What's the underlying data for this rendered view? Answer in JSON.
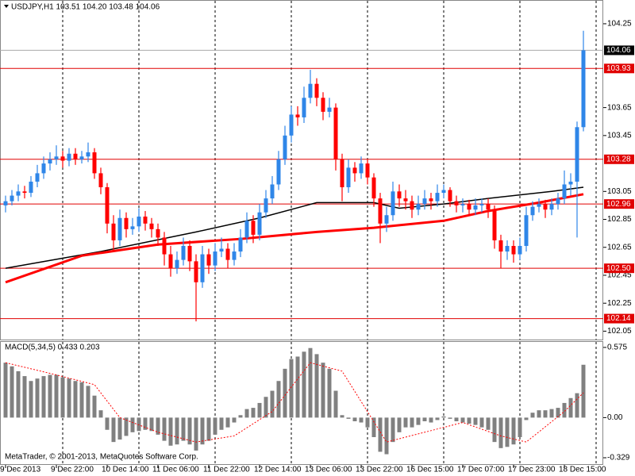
{
  "chart_data": [
    {
      "type": "candlestick",
      "title": "USDJPY,H1  103.51 104.20 103.48 104.06",
      "up_color": "#2f86e8",
      "down_color": "#ff0000",
      "level_color": "#e00000",
      "categories": [
        "9 Dec 2013",
        null,
        null,
        null,
        null,
        null,
        null,
        null,
        "9 Dec 22:00",
        null,
        null,
        null,
        null,
        null,
        null,
        null,
        "10 Dec 14:00",
        null,
        null,
        null,
        null,
        null,
        null,
        null,
        "11 Dec 06:00",
        null,
        null,
        null,
        null,
        null,
        null,
        null,
        "11 Dec 22:00",
        null,
        null,
        null,
        null,
        null,
        null,
        null,
        "12 Dec 14:00",
        null,
        null,
        null,
        null,
        null,
        null,
        null,
        "13 Dec 06:00",
        null,
        null,
        null,
        null,
        null,
        null,
        null,
        "13 Dec 22:00",
        null,
        null,
        null,
        null,
        null,
        null,
        null,
        "16 Dec 15:00",
        null,
        null,
        null,
        null,
        null,
        null,
        null,
        "17 Dec 07:00",
        null,
        null,
        null,
        null,
        null,
        null,
        null,
        "17 Dec 23:00",
        null,
        null,
        null,
        null,
        null,
        null,
        null,
        "18 Dec 15:00",
        null,
        null,
        null
      ],
      "candles": [
        [
          102.95,
          103.02,
          102.9,
          102.98
        ],
        [
          102.98,
          103.06,
          102.95,
          103.02
        ],
        [
          103.02,
          103.1,
          102.98,
          103.05
        ],
        [
          103.05,
          103.09,
          103.0,
          103.04
        ],
        [
          103.04,
          103.16,
          103.01,
          103.12
        ],
        [
          103.12,
          103.24,
          103.08,
          103.18
        ],
        [
          103.18,
          103.3,
          103.14,
          103.25
        ],
        [
          103.25,
          103.33,
          103.2,
          103.28
        ],
        [
          103.28,
          103.38,
          103.24,
          103.3
        ],
        [
          103.3,
          103.34,
          103.22,
          103.27
        ],
        [
          103.27,
          103.36,
          103.23,
          103.32
        ],
        [
          103.32,
          103.36,
          103.24,
          103.28
        ],
        [
          103.28,
          103.34,
          103.25,
          103.3
        ],
        [
          103.3,
          103.4,
          103.26,
          103.33
        ],
        [
          103.33,
          103.36,
          103.14,
          103.18
        ],
        [
          103.18,
          103.22,
          103.03,
          103.08
        ],
        [
          103.08,
          103.11,
          102.75,
          102.82
        ],
        [
          102.82,
          102.88,
          102.62,
          102.7
        ],
        [
          102.7,
          102.92,
          102.66,
          102.86
        ],
        [
          102.86,
          102.9,
          102.72,
          102.78
        ],
        [
          102.78,
          102.86,
          102.74,
          102.8
        ],
        [
          102.8,
          102.93,
          102.76,
          102.87
        ],
        [
          102.87,
          102.91,
          102.77,
          102.82
        ],
        [
          102.82,
          102.86,
          102.72,
          102.78
        ],
        [
          102.78,
          102.82,
          102.66,
          102.72
        ],
        [
          102.72,
          102.76,
          102.52,
          102.6
        ],
        [
          102.6,
          102.66,
          102.44,
          102.5
        ],
        [
          102.5,
          102.62,
          102.46,
          102.56
        ],
        [
          102.56,
          102.72,
          102.52,
          102.66
        ],
        [
          102.66,
          102.7,
          102.48,
          102.55
        ],
        [
          102.55,
          102.6,
          102.12,
          102.4
        ],
        [
          102.4,
          102.66,
          102.36,
          102.6
        ],
        [
          102.6,
          102.64,
          102.46,
          102.52
        ],
        [
          102.52,
          102.68,
          102.48,
          102.62
        ],
        [
          102.62,
          102.72,
          102.58,
          102.64
        ],
        [
          102.64,
          102.68,
          102.5,
          102.56
        ],
        [
          102.56,
          102.68,
          102.52,
          102.62
        ],
        [
          102.62,
          102.78,
          102.58,
          102.72
        ],
        [
          102.72,
          102.9,
          102.68,
          102.84
        ],
        [
          102.84,
          102.88,
          102.68,
          102.74
        ],
        [
          102.74,
          102.96,
          102.7,
          102.9
        ],
        [
          102.9,
          103.06,
          102.86,
          103.0
        ],
        [
          103.0,
          103.16,
          102.96,
          103.1
        ],
        [
          103.1,
          103.34,
          103.06,
          103.28
        ],
        [
          103.28,
          103.52,
          103.24,
          103.45
        ],
        [
          103.45,
          103.66,
          103.4,
          103.6
        ],
        [
          103.6,
          103.66,
          103.52,
          103.58
        ],
        [
          103.58,
          103.8,
          103.54,
          103.72
        ],
        [
          103.72,
          103.92,
          103.68,
          103.82
        ],
        [
          103.82,
          103.86,
          103.66,
          103.72
        ],
        [
          103.72,
          103.76,
          103.56,
          103.62
        ],
        [
          103.62,
          103.72,
          103.58,
          103.65
        ],
        [
          103.65,
          103.68,
          103.2,
          103.28
        ],
        [
          103.28,
          103.32,
          102.98,
          103.08
        ],
        [
          103.08,
          103.28,
          103.04,
          103.22
        ],
        [
          103.22,
          103.26,
          103.12,
          103.18
        ],
        [
          103.18,
          103.3,
          103.14,
          103.25
        ],
        [
          103.25,
          103.28,
          103.1,
          103.15
        ],
        [
          103.15,
          103.18,
          102.94,
          103.0
        ],
        [
          103.0,
          103.04,
          102.68,
          102.82
        ],
        [
          102.82,
          102.94,
          102.76,
          102.88
        ],
        [
          102.88,
          103.12,
          102.84,
          103.05
        ],
        [
          103.05,
          103.1,
          102.94,
          103.0
        ],
        [
          103.0,
          103.06,
          102.92,
          102.98
        ],
        [
          102.98,
          103.02,
          102.86,
          102.92
        ],
        [
          102.92,
          103.02,
          102.88,
          102.96
        ],
        [
          102.96,
          103.06,
          102.92,
          103.0
        ],
        [
          103.0,
          103.04,
          102.92,
          102.98
        ],
        [
          102.98,
          103.1,
          102.94,
          103.04
        ],
        [
          103.04,
          103.1,
          103.0,
          103.06
        ],
        [
          103.06,
          103.08,
          102.94,
          102.98
        ],
        [
          102.98,
          103.02,
          102.9,
          102.95
        ],
        [
          102.95,
          103.0,
          102.9,
          102.96
        ],
        [
          102.96,
          102.99,
          102.88,
          102.92
        ],
        [
          102.92,
          103.0,
          102.88,
          102.95
        ],
        [
          102.95,
          103.0,
          102.9,
          102.96
        ],
        [
          102.96,
          103.0,
          102.86,
          102.92
        ],
        [
          102.92,
          102.95,
          102.64,
          102.7
        ],
        [
          102.7,
          102.74,
          102.5,
          102.62
        ],
        [
          102.62,
          102.7,
          102.56,
          102.66
        ],
        [
          102.66,
          102.7,
          102.54,
          102.6
        ],
        [
          102.6,
          102.72,
          102.56,
          102.66
        ],
        [
          102.66,
          102.94,
          102.62,
          102.88
        ],
        [
          102.88,
          102.98,
          102.84,
          102.94
        ],
        [
          102.94,
          103.0,
          102.9,
          102.96
        ],
        [
          102.96,
          102.99,
          102.86,
          102.92
        ],
        [
          102.92,
          103.0,
          102.88,
          102.96
        ],
        [
          102.96,
          103.04,
          102.92,
          103.0
        ],
        [
          103.0,
          103.2,
          102.96,
          103.1
        ],
        [
          103.1,
          103.18,
          103.02,
          103.12
        ],
        [
          103.12,
          103.55,
          102.72,
          103.51
        ],
        [
          103.51,
          104.2,
          103.48,
          104.06
        ]
      ],
      "overlays": [
        {
          "color": "#000000",
          "width": 1.5,
          "x": [
            0,
            15,
            30,
            40,
            49,
            58,
            62,
            69,
            76,
            86,
            91
          ],
          "values": [
            102.5,
            102.62,
            102.76,
            102.86,
            102.97,
            102.97,
            102.93,
            102.96,
            103.0,
            103.05,
            103.08
          ]
        },
        {
          "color": "#ff0000",
          "width": 3,
          "x": [
            0,
            12,
            24,
            37,
            49,
            58,
            69,
            76,
            84,
            91
          ],
          "values": [
            102.4,
            102.59,
            102.67,
            102.71,
            102.76,
            102.79,
            102.84,
            102.91,
            102.97,
            103.03
          ]
        }
      ],
      "levels": [
        103.93,
        103.28,
        102.96,
        {
          "value": 102.5,
          "label": "102.50"
        },
        102.14
      ],
      "current_price": 104.06,
      "ylim": [
        101.99,
        104.42
      ],
      "yticks": [
        104.25,
        103.65,
        103.45,
        103.05,
        102.85,
        102.65,
        102.45,
        102.25,
        102.05
      ]
    },
    {
      "type": "bar",
      "title": "MACD(5,34,5) 0.433 0.203",
      "annotation": "MetaTrader, © 2001-2013, MetaQuotes Software Corp.",
      "color": "#808080",
      "signal_color": "#ff0000",
      "values": [
        0.45,
        0.42,
        0.38,
        0.34,
        0.3,
        0.32,
        0.34,
        0.35,
        0.35,
        0.33,
        0.32,
        0.3,
        0.29,
        0.26,
        0.18,
        0.06,
        -0.1,
        -0.2,
        -0.18,
        -0.15,
        -0.12,
        -0.11,
        -0.1,
        -0.11,
        -0.14,
        -0.19,
        -0.23,
        -0.22,
        -0.19,
        -0.22,
        -0.27,
        -0.22,
        -0.19,
        -0.14,
        -0.1,
        -0.08,
        -0.04,
        0.02,
        0.07,
        0.08,
        0.12,
        0.17,
        0.22,
        0.3,
        0.4,
        0.48,
        0.5,
        0.54,
        0.57,
        0.52,
        0.45,
        0.4,
        0.22,
        0.02,
        -0.01,
        -0.03,
        -0.04,
        -0.08,
        -0.16,
        -0.28,
        -0.3,
        -0.2,
        -0.12,
        -0.08,
        -0.08,
        -0.06,
        -0.03,
        -0.04,
        -0.02,
        0.01,
        -0.01,
        -0.03,
        -0.04,
        -0.05,
        -0.06,
        -0.08,
        -0.1,
        -0.2,
        -0.25,
        -0.24,
        -0.22,
        -0.16,
        -0.02,
        0.04,
        0.06,
        0.06,
        0.07,
        0.08,
        0.12,
        0.16,
        0.2,
        0.433
      ],
      "signal": {
        "x": [
          0,
          8,
          14,
          18,
          24,
          30,
          36,
          42,
          48,
          53,
          60,
          66,
          72,
          78,
          82,
          88,
          91
        ],
        "values": [
          0.45,
          0.35,
          0.27,
          0.0,
          -0.12,
          -0.2,
          -0.15,
          0.05,
          0.45,
          0.38,
          -0.2,
          -0.12,
          -0.04,
          -0.15,
          -0.2,
          0.05,
          0.203
        ]
      },
      "ylim": [
        -0.381,
        0.62
      ],
      "yticks": [
        0.575,
        {
          "value": 0,
          "label": "0.00"
        },
        -0.329
      ]
    }
  ]
}
